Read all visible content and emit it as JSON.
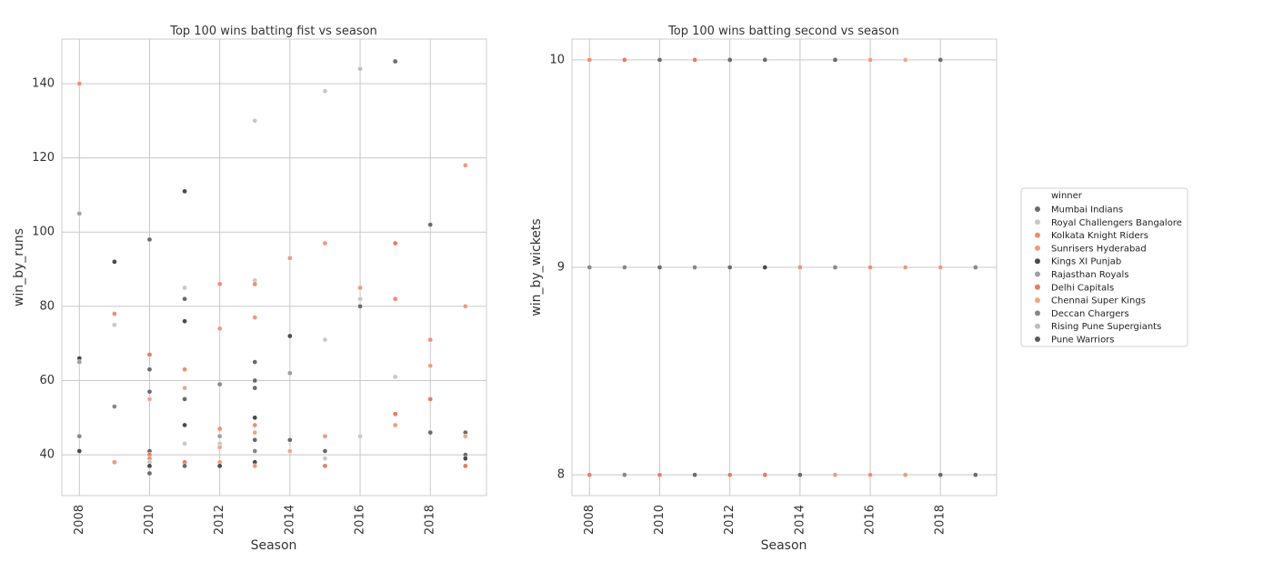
{
  "legend": {
    "title": "winner",
    "entries": [
      {
        "name": "Mumbai Indians",
        "color": "#6b6b6b"
      },
      {
        "name": "Royal Challengers Bangalore",
        "color": "#c8c8c8"
      },
      {
        "name": "Kolkata Knight Riders",
        "color": "#ee8f6f"
      },
      {
        "name": "Sunrisers Hyderabad",
        "color": "#ef9a7c"
      },
      {
        "name": "Kings XI Punjab",
        "color": "#4a4a4a"
      },
      {
        "name": "Rajasthan Royals",
        "color": "#a0a0a0"
      },
      {
        "name": "Delhi Capitals",
        "color": "#e57c62"
      },
      {
        "name": "Chennai Super Kings",
        "color": "#f2a58a"
      },
      {
        "name": "Deccan Chargers",
        "color": "#888888"
      },
      {
        "name": "Rising Pune Supergiants",
        "color": "#bdbdbd"
      },
      {
        "name": "Pune Warriors",
        "color": "#5a5a5a"
      }
    ]
  },
  "chart_data": [
    {
      "type": "scatter",
      "title": "Top 100 wins batting fist vs season",
      "xlabel": "Season",
      "ylabel": "win_by_runs",
      "xlim": [
        2007.5,
        2019.6
      ],
      "ylim": [
        29,
        152
      ],
      "xticks": [
        "2008",
        "2010",
        "2012",
        "2014",
        "2016",
        "2018"
      ],
      "xtick_values": [
        2008,
        2010,
        2012,
        2014,
        2016,
        2018
      ],
      "yticks": [
        "40",
        "60",
        "80",
        "100",
        "120",
        "140"
      ],
      "ytick_values": [
        40,
        60,
        80,
        100,
        120,
        140
      ],
      "grid": true,
      "points": [
        {
          "x": 2008,
          "y": 140,
          "s": "Kolkata Knight Riders"
        },
        {
          "x": 2008,
          "y": 105,
          "s": "Rajasthan Royals"
        },
        {
          "x": 2008,
          "y": 66,
          "s": "Kings XI Punjab"
        },
        {
          "x": 2008,
          "y": 65,
          "s": "Rajasthan Royals"
        },
        {
          "x": 2008,
          "y": 45,
          "s": "Deccan Chargers"
        },
        {
          "x": 2008,
          "y": 41,
          "s": "Kings XI Punjab"
        },
        {
          "x": 2009,
          "y": 92,
          "s": "Kings XI Punjab"
        },
        {
          "x": 2009,
          "y": 78,
          "s": "Kolkata Knight Riders"
        },
        {
          "x": 2009,
          "y": 75,
          "s": "Royal Challengers Bangalore"
        },
        {
          "x": 2009,
          "y": 53,
          "s": "Deccan Chargers"
        },
        {
          "x": 2009,
          "y": 38,
          "s": "Sunrisers Hyderabad"
        },
        {
          "x": 2010,
          "y": 98,
          "s": "Mumbai Indians"
        },
        {
          "x": 2010,
          "y": 67,
          "s": "Delhi Capitals"
        },
        {
          "x": 2010,
          "y": 63,
          "s": "Mumbai Indians"
        },
        {
          "x": 2010,
          "y": 57,
          "s": "Mumbai Indians"
        },
        {
          "x": 2010,
          "y": 55,
          "s": "Chennai Super Kings"
        },
        {
          "x": 2010,
          "y": 41,
          "s": "Mumbai Indians"
        },
        {
          "x": 2010,
          "y": 40,
          "s": "Delhi Capitals"
        },
        {
          "x": 2010,
          "y": 39,
          "s": "Kolkata Knight Riders"
        },
        {
          "x": 2010,
          "y": 38,
          "s": "Royal Challengers Bangalore"
        },
        {
          "x": 2010,
          "y": 37,
          "s": "Kings XI Punjab"
        },
        {
          "x": 2010,
          "y": 35,
          "s": "Mumbai Indians"
        },
        {
          "x": 2011,
          "y": 111,
          "s": "Kings XI Punjab"
        },
        {
          "x": 2011,
          "y": 85,
          "s": "Royal Challengers Bangalore"
        },
        {
          "x": 2011,
          "y": 82,
          "s": "Mumbai Indians"
        },
        {
          "x": 2011,
          "y": 76,
          "s": "Kings XI Punjab"
        },
        {
          "x": 2011,
          "y": 63,
          "s": "Kolkata Knight Riders"
        },
        {
          "x": 2011,
          "y": 58,
          "s": "Chennai Super Kings"
        },
        {
          "x": 2011,
          "y": 55,
          "s": "Mumbai Indians"
        },
        {
          "x": 2011,
          "y": 48,
          "s": "Kings XI Punjab"
        },
        {
          "x": 2011,
          "y": 43,
          "s": "Royal Challengers Bangalore"
        },
        {
          "x": 2011,
          "y": 38,
          "s": "Delhi Capitals"
        },
        {
          "x": 2011,
          "y": 37,
          "s": "Mumbai Indians"
        },
        {
          "x": 2012,
          "y": 86,
          "s": "Kolkata Knight Riders"
        },
        {
          "x": 2012,
          "y": 74,
          "s": "Sunrisers Hyderabad"
        },
        {
          "x": 2012,
          "y": 59,
          "s": "Deccan Chargers"
        },
        {
          "x": 2012,
          "y": 47,
          "s": "Kolkata Knight Riders"
        },
        {
          "x": 2012,
          "y": 45,
          "s": "Rajasthan Royals"
        },
        {
          "x": 2012,
          "y": 43,
          "s": "Royal Challengers Bangalore"
        },
        {
          "x": 2012,
          "y": 42,
          "s": "Chennai Super Kings"
        },
        {
          "x": 2012,
          "y": 38,
          "s": "Sunrisers Hyderabad"
        },
        {
          "x": 2012,
          "y": 37,
          "s": "Kings XI Punjab"
        },
        {
          "x": 2013,
          "y": 130,
          "s": "Royal Challengers Bangalore"
        },
        {
          "x": 2013,
          "y": 87,
          "s": "Royal Challengers Bangalore"
        },
        {
          "x": 2013,
          "y": 86,
          "s": "Kolkata Knight Riders"
        },
        {
          "x": 2013,
          "y": 77,
          "s": "Sunrisers Hyderabad"
        },
        {
          "x": 2013,
          "y": 65,
          "s": "Mumbai Indians"
        },
        {
          "x": 2013,
          "y": 60,
          "s": "Mumbai Indians"
        },
        {
          "x": 2013,
          "y": 58,
          "s": "Mumbai Indians"
        },
        {
          "x": 2013,
          "y": 50,
          "s": "Kings XI Punjab"
        },
        {
          "x": 2013,
          "y": 48,
          "s": "Kolkata Knight Riders"
        },
        {
          "x": 2013,
          "y": 46,
          "s": "Chennai Super Kings"
        },
        {
          "x": 2013,
          "y": 44,
          "s": "Mumbai Indians"
        },
        {
          "x": 2013,
          "y": 41,
          "s": "Deccan Chargers"
        },
        {
          "x": 2013,
          "y": 38,
          "s": "Kings XI Punjab"
        },
        {
          "x": 2013,
          "y": 37,
          "s": "Sunrisers Hyderabad"
        },
        {
          "x": 2014,
          "y": 93,
          "s": "Sunrisers Hyderabad"
        },
        {
          "x": 2014,
          "y": 72,
          "s": "Kings XI Punjab"
        },
        {
          "x": 2014,
          "y": 62,
          "s": "Rajasthan Royals"
        },
        {
          "x": 2014,
          "y": 44,
          "s": "Mumbai Indians"
        },
        {
          "x": 2014,
          "y": 41,
          "s": "Chennai Super Kings"
        },
        {
          "x": 2015,
          "y": 138,
          "s": "Royal Challengers Bangalore"
        },
        {
          "x": 2015,
          "y": 97,
          "s": "Sunrisers Hyderabad"
        },
        {
          "x": 2015,
          "y": 71,
          "s": "Royal Challengers Bangalore"
        },
        {
          "x": 2015,
          "y": 45,
          "s": "Sunrisers Hyderabad"
        },
        {
          "x": 2015,
          "y": 41,
          "s": "Mumbai Indians"
        },
        {
          "x": 2015,
          "y": 39,
          "s": "Royal Challengers Bangalore"
        },
        {
          "x": 2015,
          "y": 37,
          "s": "Delhi Capitals"
        },
        {
          "x": 2016,
          "y": 144,
          "s": "Rising Pune Supergiants"
        },
        {
          "x": 2016,
          "y": 85,
          "s": "Sunrisers Hyderabad"
        },
        {
          "x": 2016,
          "y": 82,
          "s": "Royal Challengers Bangalore"
        },
        {
          "x": 2016,
          "y": 80,
          "s": "Mumbai Indians"
        },
        {
          "x": 2016,
          "y": 45,
          "s": "Royal Challengers Bangalore"
        },
        {
          "x": 2017,
          "y": 146,
          "s": "Mumbai Indians"
        },
        {
          "x": 2017,
          "y": 97,
          "s": "Delhi Capitals"
        },
        {
          "x": 2017,
          "y": 82,
          "s": "Kolkata Knight Riders"
        },
        {
          "x": 2017,
          "y": 61,
          "s": "Royal Challengers Bangalore"
        },
        {
          "x": 2017,
          "y": 51,
          "s": "Delhi Capitals"
        },
        {
          "x": 2017,
          "y": 48,
          "s": "Sunrisers Hyderabad"
        },
        {
          "x": 2018,
          "y": 102,
          "s": "Mumbai Indians"
        },
        {
          "x": 2018,
          "y": 71,
          "s": "Kolkata Knight Riders"
        },
        {
          "x": 2018,
          "y": 64,
          "s": "Sunrisers Hyderabad"
        },
        {
          "x": 2018,
          "y": 55,
          "s": "Delhi Capitals"
        },
        {
          "x": 2018,
          "y": 46,
          "s": "Mumbai Indians"
        },
        {
          "x": 2019,
          "y": 118,
          "s": "Sunrisers Hyderabad"
        },
        {
          "x": 2019,
          "y": 80,
          "s": "Sunrisers Hyderabad"
        },
        {
          "x": 2019,
          "y": 46,
          "s": "Mumbai Indians"
        },
        {
          "x": 2019,
          "y": 45,
          "s": "Chennai Super Kings"
        },
        {
          "x": 2019,
          "y": 40,
          "s": "Mumbai Indians"
        },
        {
          "x": 2019,
          "y": 39,
          "s": "Kings XI Punjab"
        },
        {
          "x": 2019,
          "y": 37,
          "s": "Delhi Capitals"
        }
      ]
    },
    {
      "type": "scatter",
      "title": "Top 100 wins batting second vs season",
      "xlabel": "Season",
      "ylabel": "win_by_wickets",
      "xlim": [
        2007.5,
        2019.6
      ],
      "ylim": [
        7.9,
        10.1
      ],
      "xticks": [
        "2008",
        "2010",
        "2012",
        "2014",
        "2016",
        "2018"
      ],
      "xtick_values": [
        2008,
        2010,
        2012,
        2014,
        2016,
        2018
      ],
      "yticks": [
        "8",
        "9",
        "10"
      ],
      "ytick_values": [
        8,
        9,
        10
      ],
      "grid": true,
      "points": [
        {
          "x": 2008,
          "y": 10,
          "s": "Kolkata Knight Riders"
        },
        {
          "x": 2009,
          "y": 10,
          "s": "Delhi Capitals"
        },
        {
          "x": 2010,
          "y": 10,
          "s": "Mumbai Indians"
        },
        {
          "x": 2011,
          "y": 10,
          "s": "Delhi Capitals"
        },
        {
          "x": 2012,
          "y": 10,
          "s": "Mumbai Indians"
        },
        {
          "x": 2013,
          "y": 10,
          "s": "Mumbai Indians"
        },
        {
          "x": 2015,
          "y": 10,
          "s": "Mumbai Indians"
        },
        {
          "x": 2016,
          "y": 10,
          "s": "Sunrisers Hyderabad"
        },
        {
          "x": 2017,
          "y": 10,
          "s": "Chennai Super Kings"
        },
        {
          "x": 2018,
          "y": 10,
          "s": "Mumbai Indians"
        },
        {
          "x": 2008,
          "y": 9,
          "s": "Deccan Chargers"
        },
        {
          "x": 2009,
          "y": 9,
          "s": "Deccan Chargers"
        },
        {
          "x": 2010,
          "y": 9,
          "s": "Mumbai Indians"
        },
        {
          "x": 2011,
          "y": 9,
          "s": "Deccan Chargers"
        },
        {
          "x": 2012,
          "y": 9,
          "s": "Mumbai Indians"
        },
        {
          "x": 2013,
          "y": 9,
          "s": "Kings XI Punjab"
        },
        {
          "x": 2014,
          "y": 9,
          "s": "Kolkata Knight Riders"
        },
        {
          "x": 2015,
          "y": 9,
          "s": "Deccan Chargers"
        },
        {
          "x": 2016,
          "y": 9,
          "s": "Kolkata Knight Riders"
        },
        {
          "x": 2017,
          "y": 9,
          "s": "Sunrisers Hyderabad"
        },
        {
          "x": 2018,
          "y": 9,
          "s": "Sunrisers Hyderabad"
        },
        {
          "x": 2019,
          "y": 9,
          "s": "Deccan Chargers"
        },
        {
          "x": 2008,
          "y": 8,
          "s": "Delhi Capitals"
        },
        {
          "x": 2009,
          "y": 8,
          "s": "Deccan Chargers"
        },
        {
          "x": 2010,
          "y": 8,
          "s": "Delhi Capitals"
        },
        {
          "x": 2011,
          "y": 8,
          "s": "Mumbai Indians"
        },
        {
          "x": 2012,
          "y": 8,
          "s": "Delhi Capitals"
        },
        {
          "x": 2013,
          "y": 8,
          "s": "Delhi Capitals"
        },
        {
          "x": 2014,
          "y": 8,
          "s": "Mumbai Indians"
        },
        {
          "x": 2015,
          "y": 8,
          "s": "Sunrisers Hyderabad"
        },
        {
          "x": 2016,
          "y": 8,
          "s": "Kolkata Knight Riders"
        },
        {
          "x": 2017,
          "y": 8,
          "s": "Sunrisers Hyderabad"
        },
        {
          "x": 2018,
          "y": 8,
          "s": "Mumbai Indians"
        },
        {
          "x": 2019,
          "y": 8,
          "s": "Mumbai Indians"
        }
      ]
    }
  ]
}
